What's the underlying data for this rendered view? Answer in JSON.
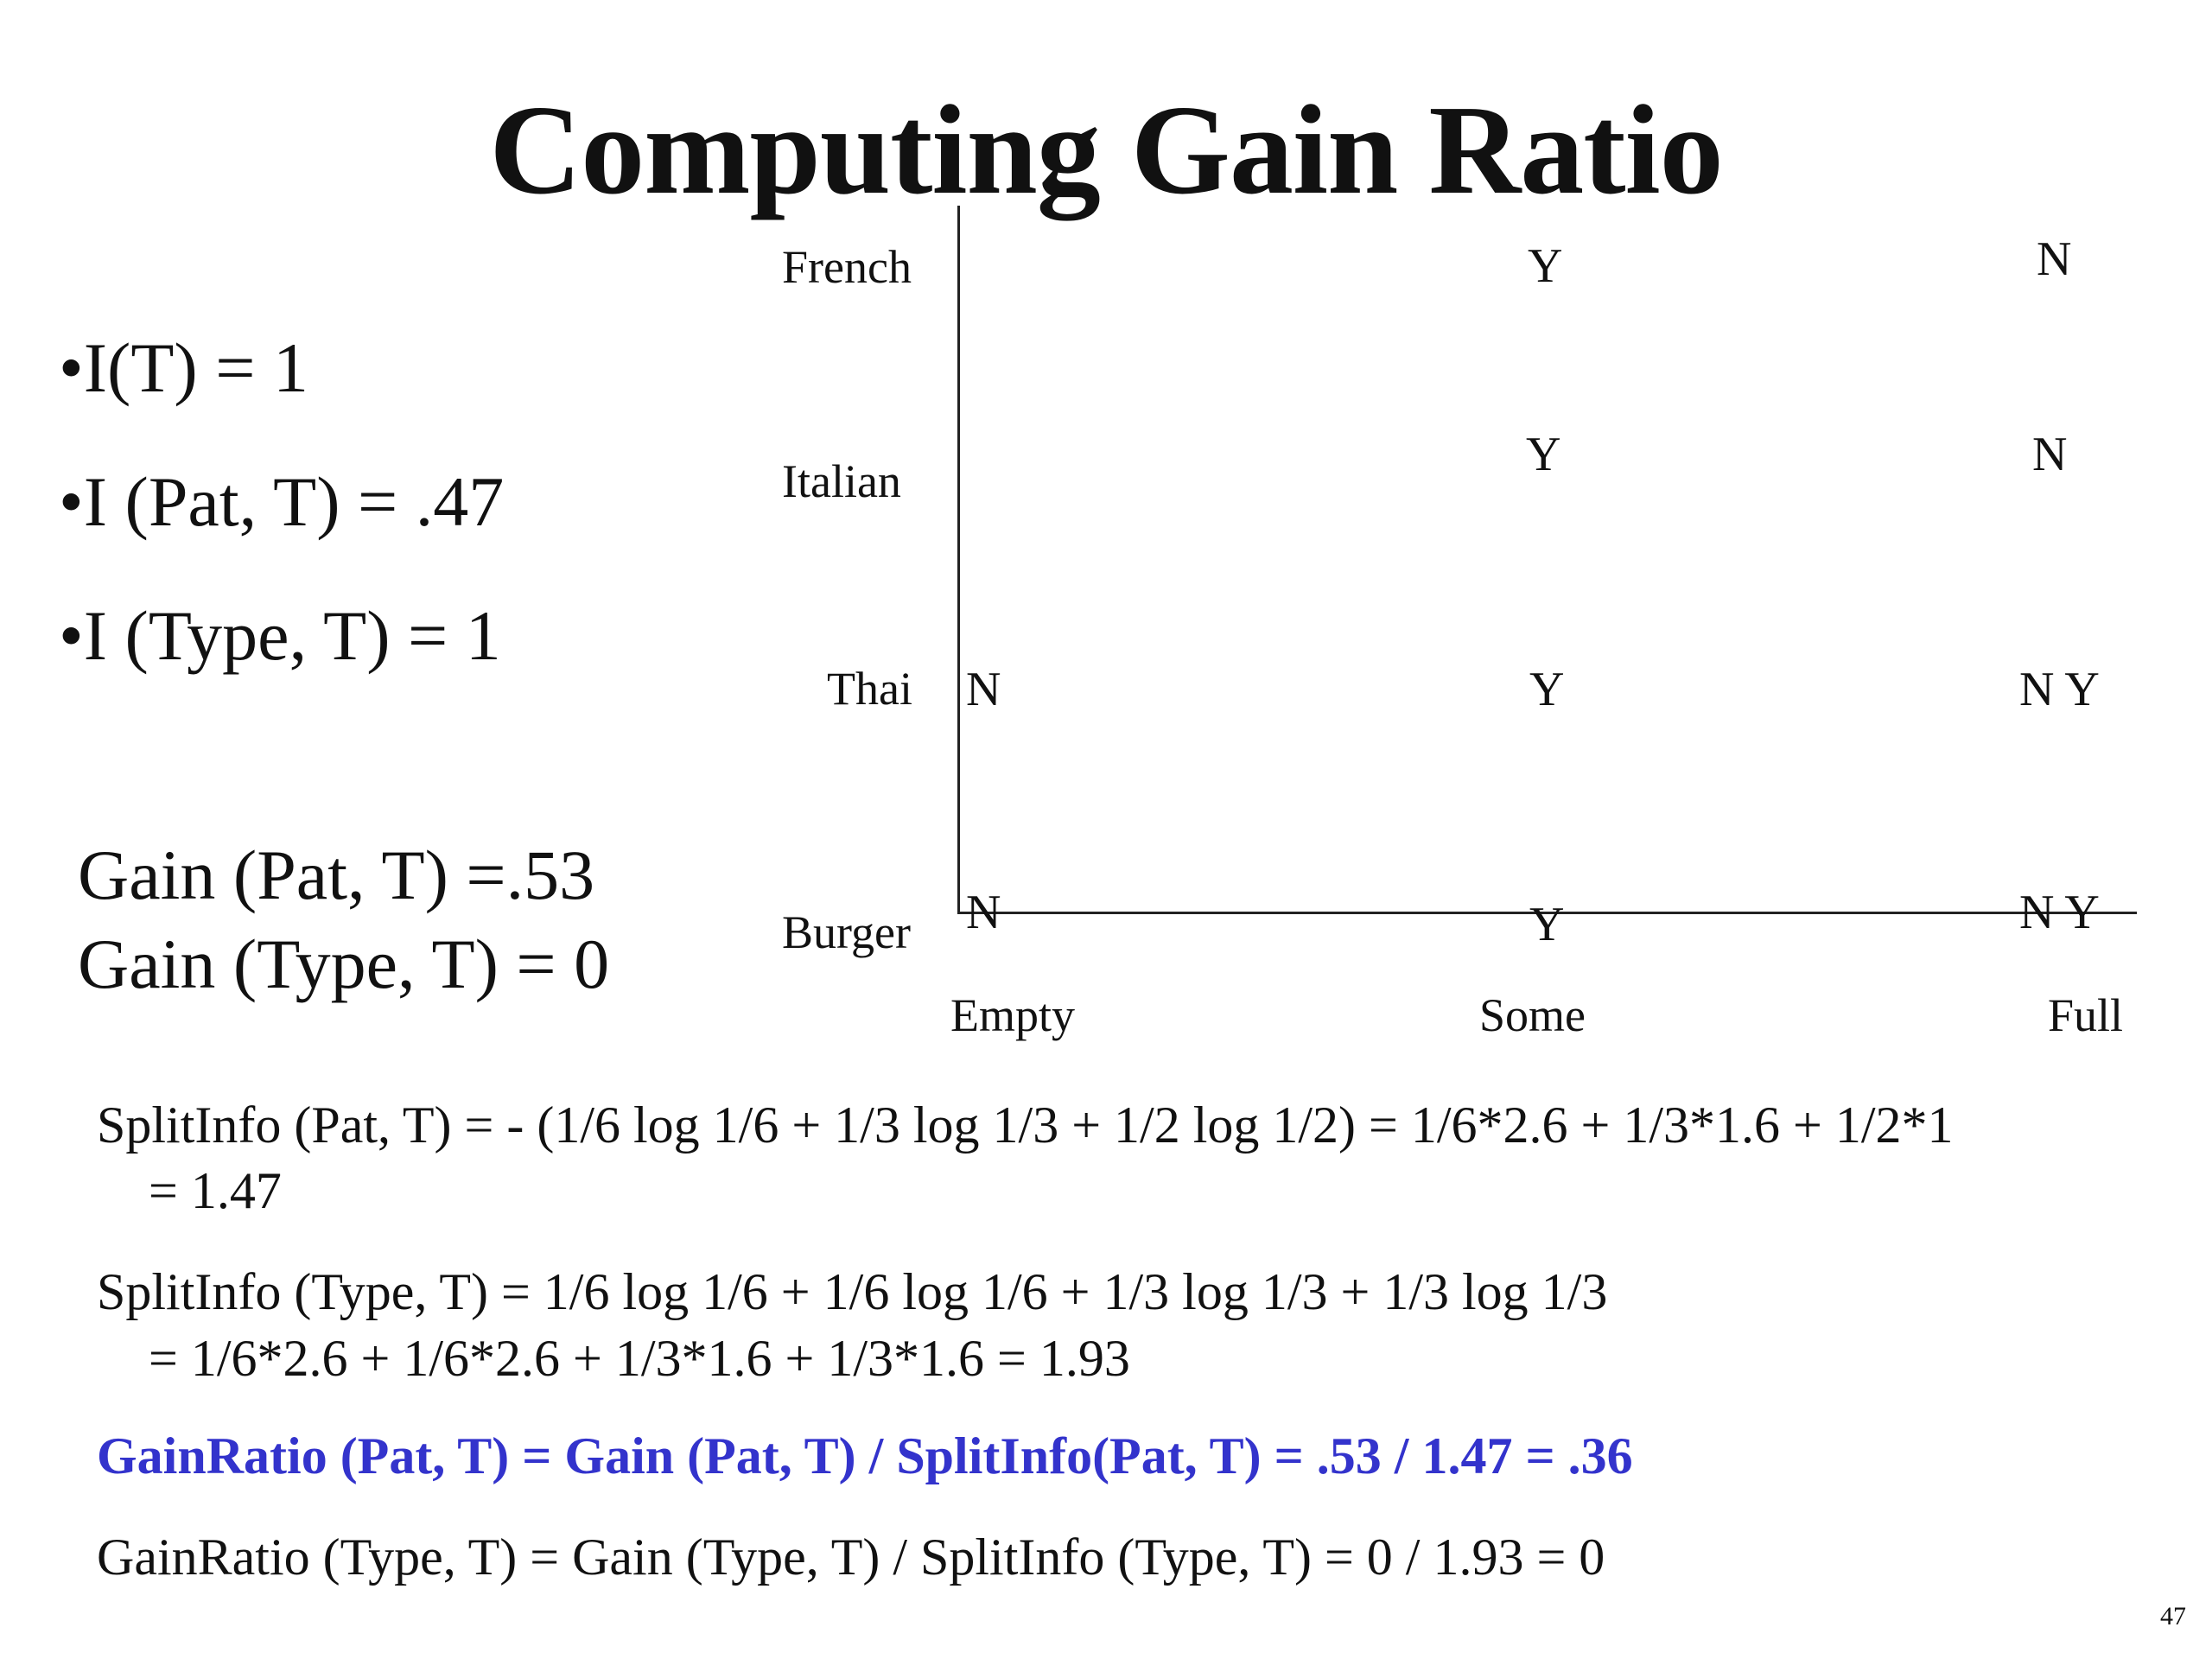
{
  "slide": {
    "title": "Computing Gain Ratio",
    "bullets": [
      "•I(T) = 1",
      "•I (Pat, T) = .47",
      "•I (Type, T) = 1"
    ],
    "gains": [
      "Gain (Pat, T) =.53",
      "Gain (Type, T) = 0"
    ],
    "grid": {
      "row_labels": [
        "French",
        "Italian",
        "Thai",
        "Burger"
      ],
      "col_labels": [
        "Empty",
        "Some",
        "Full"
      ],
      "cells": {
        "french_some": "Y",
        "french_full": "N",
        "italian_some": "Y",
        "italian_full": "N",
        "thai_empty": "N",
        "thai_some": "Y",
        "thai_full": "N Y",
        "burger_empty": "N",
        "burger_some": "Y",
        "burger_full": "N Y"
      }
    },
    "formulas": {
      "split_pat_line1": "SplitInfo (Pat, T) = - (1/6 log 1/6 + 1/3 log 1/3 + 1/2 log 1/2) = 1/6*2.6 + 1/3*1.6 + 1/2*1",
      "split_pat_line2": "= 1.47",
      "split_type_line1": "SplitInfo (Type, T) = 1/6 log 1/6 + 1/6 log 1/6 + 1/3 log 1/3 + 1/3 log 1/3",
      "split_type_line2": "= 1/6*2.6 + 1/6*2.6 + 1/3*1.6 + 1/3*1.6 = 1.93",
      "gainratio_pat": "GainRatio (Pat, T) = Gain (Pat, T) / SplitInfo(Pat, T) = .53 / 1.47 = .36",
      "gainratio_type": "GainRatio (Type, T) = Gain (Type, T) / SplitInfo (Type, T) = 0 / 1.93 = 0"
    },
    "page_number": "47",
    "colors": {
      "highlight": "#3333cc",
      "text": "#111111",
      "background": "#ffffff"
    }
  }
}
